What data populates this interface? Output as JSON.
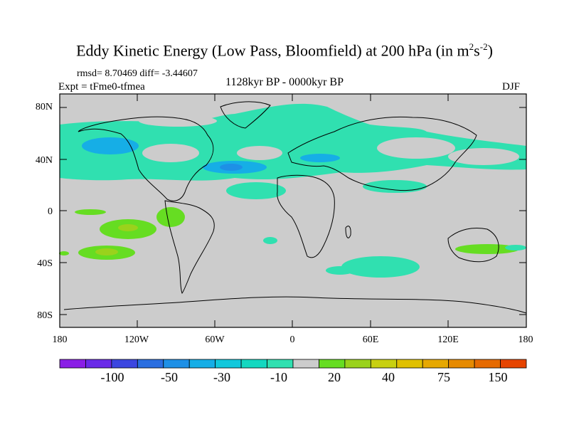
{
  "title": {
    "main": "Eddy Kinetic Energy (Low Pass, Bloomfield) at 200 hPa (in m",
    "sup1": "2",
    "mid": "s",
    "sup2": "-2",
    "end": ")"
  },
  "stats": "rmsd= 8.70469 diff= -3.44607",
  "expt": "Expt = tFme0-tfmea",
  "period": "1128kyr BP - 0000kyr BP",
  "season": "DJF",
  "y_ticks": [
    "80N",
    "40N",
    "0",
    "40S",
    "80S"
  ],
  "x_ticks": [
    "180",
    "120W",
    "60W",
    "0",
    "60E",
    "120E",
    "180"
  ],
  "colorbar": {
    "labels": [
      "-100",
      "-50",
      "-30",
      "-10",
      "20",
      "40",
      "75",
      "150"
    ],
    "colors": [
      "#8a1ee6",
      "#6a2ae8",
      "#3c46e0",
      "#2a6ee0",
      "#1e90e6",
      "#16aee6",
      "#12c8dc",
      "#14d8c0",
      "#30e0b0",
      "#cccccc",
      "#66dd22",
      "#9ad21c",
      "#c8d010",
      "#e0c000",
      "#e6a800",
      "#e68a00",
      "#e66a00",
      "#e64400"
    ],
    "land_masked_color": "#cccccc"
  }
}
